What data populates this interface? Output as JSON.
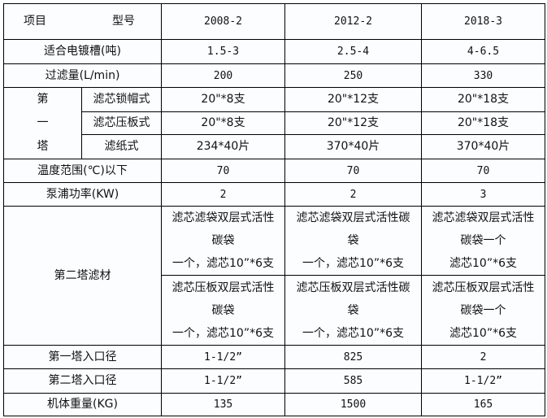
{
  "header": {
    "item_label": "项目",
    "model_label": "型号",
    "models": [
      "2008-2",
      "2012-2",
      "2018-3"
    ]
  },
  "rows": {
    "tank": {
      "label": "适合电镀槽(吨)",
      "values": [
        "1.5-3",
        "2.5-4",
        "4-6.5"
      ]
    },
    "flow": {
      "label": "过滤量(L/min)",
      "values": [
        "200",
        "250",
        "330"
      ]
    },
    "tower1": {
      "label_chars": [
        "第",
        "一",
        "塔"
      ],
      "sub": [
        {
          "label": "滤芯锁帽式",
          "values": [
            "20\"*8支",
            "20\"*12支",
            "20\"*18支"
          ]
        },
        {
          "label": "滤芯压板式",
          "values": [
            "20\"*8支",
            "20\"*12支",
            "20\"*18支"
          ]
        },
        {
          "label": "滤纸式",
          "values": [
            "234*40片",
            "370*40片",
            "370*40片"
          ]
        }
      ]
    },
    "temp": {
      "label": "温度范围(℃)以下",
      "values": [
        "70",
        "70",
        "70"
      ]
    },
    "pump": {
      "label": "泵浦功率(KW)",
      "values": [
        "2",
        "2",
        "3"
      ]
    },
    "tower2": {
      "label": "第二塔滤材",
      "bag": [
        [
          "滤芯滤袋双层式活性",
          "碳袋",
          "一个，滤芯10”*6支"
        ],
        [
          "滤芯滤袋双层式活性碳",
          "袋",
          "一个，滤芯10”*6支"
        ],
        [
          "滤芯滤袋双层式活性",
          "碳袋一个",
          "滤芯10”*6支"
        ]
      ],
      "plate": [
        [
          "滤芯压板双层式活性",
          "碳袋",
          "一个，滤芯10”*6支"
        ],
        [
          "滤芯压板双层式活性碳",
          "袋",
          "一个，滤芯10”*6支"
        ],
        [
          "滤芯压板双层式活性",
          "碳袋一个",
          "滤芯10”*6支"
        ]
      ]
    },
    "inlet1": {
      "label": "第一塔入口径",
      "values": [
        "1-1/2”",
        "825",
        "2"
      ]
    },
    "inlet2": {
      "label": "第二塔入口径",
      "values": [
        "1-1/2”",
        "585",
        "1-1/2”"
      ]
    },
    "weight": {
      "label": "机体重量(KG)",
      "values": [
        "135",
        "1500",
        "165"
      ]
    }
  }
}
